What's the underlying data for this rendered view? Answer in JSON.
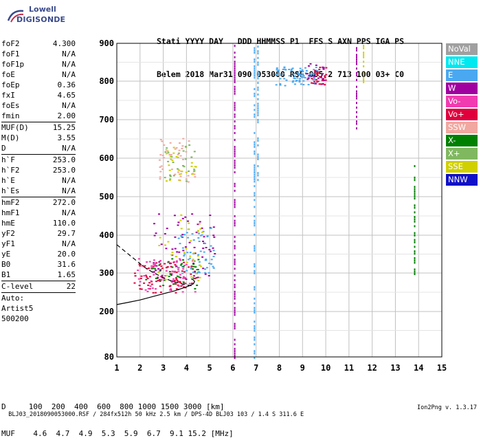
{
  "logo": {
    "line1": "Lowell",
    "line2": "DIGISONDE"
  },
  "header": {
    "line1": "Stati YYYY DAY   DDD HHMMSS P1  FFS S AXN PPS IGA PS",
    "line2": "Belem 2018 Mar31 090 053000 RSF 005 2 713 100 03+ C0"
  },
  "params_group1": [
    {
      "k": "foF2",
      "v": "4.300"
    },
    {
      "k": "foF1",
      "v": "N/A"
    },
    {
      "k": "foF1p",
      "v": "N/A"
    },
    {
      "k": "foE",
      "v": "N/A"
    },
    {
      "k": "foEp",
      "v": "0.36"
    },
    {
      "k": "fxI",
      "v": "4.65"
    },
    {
      "k": "foEs",
      "v": "N/A"
    },
    {
      "k": "fmin",
      "v": "2.00"
    }
  ],
  "params_group2": [
    {
      "k": "MUF(D)",
      "v": "15.25"
    },
    {
      "k": "M(D)",
      "v": "3.55"
    },
    {
      "k": "D",
      "v": "N/A"
    }
  ],
  "params_group3": [
    {
      "k": "h`F",
      "v": "253.0"
    },
    {
      "k": "h`F2",
      "v": "253.0"
    },
    {
      "k": "h`E",
      "v": "N/A"
    },
    {
      "k": "h`Es",
      "v": "N/A"
    }
  ],
  "params_group4": [
    {
      "k": "hmF2",
      "v": "272.0"
    },
    {
      "k": "hmF1",
      "v": "N/A"
    },
    {
      "k": "hmE",
      "v": "110.0"
    },
    {
      "k": "yF2",
      "v": "29.7"
    },
    {
      "k": "yF1",
      "v": "N/A"
    },
    {
      "k": "yE",
      "v": "20.0"
    },
    {
      "k": "B0",
      "v": "31.6"
    },
    {
      "k": "B1",
      "v": "1.65"
    }
  ],
  "params_group5": [
    {
      "k": "C-level",
      "v": "22"
    }
  ],
  "autoscale": {
    "line1": "Auto:",
    "line2": "Artist5",
    "line3": "500200"
  },
  "legend": [
    {
      "label": "NoVal",
      "color": "#a0a0a0"
    },
    {
      "label": "NNE",
      "color": "#00e8f0"
    },
    {
      "label": "E",
      "color": "#4aa8f0"
    },
    {
      "label": "W",
      "color": "#a000a0"
    },
    {
      "label": "Vo-",
      "color": "#f03cb0"
    },
    {
      "label": "Vo+",
      "color": "#e0003c"
    },
    {
      "label": "SSW",
      "color": "#f0a8a0"
    },
    {
      "label": "X-",
      "color": "#008000"
    },
    {
      "label": "X+",
      "color": "#80b860"
    },
    {
      "label": "SSE",
      "color": "#d0d000"
    },
    {
      "label": "NNW",
      "color": "#1010c8"
    }
  ],
  "mufs": {
    "line1": "D     100  200  400  600  800 1000 1500 3000 [km]",
    "line2": "MUF    4.6  4.7  4.9  5.3  5.9  6.7  9.1 15.2 [MHz]"
  },
  "footer": {
    "left": "BLJ03_2018090053000.RSF / 284fx512h 50 kHz 2.5 km / DPS-4D BLJ03 103 / 1.4 S 311.6 E",
    "right": "Ion2Png v. 1.3.17"
  },
  "chart_data": {
    "type": "scatter",
    "title": "",
    "xlabel": "",
    "ylabel": "",
    "xlim": [
      1,
      15
    ],
    "ylim": [
      80,
      900
    ],
    "xticks": [
      1,
      2,
      3,
      4,
      5,
      6,
      7,
      8,
      9,
      10,
      11,
      12,
      13,
      14,
      15
    ],
    "yticks": [
      80,
      200,
      300,
      400,
      500,
      600,
      700,
      800,
      900
    ],
    "grid": true,
    "y_scale": "sqrt-like (virtual height, compressed low end)",
    "traces": [
      {
        "name": "O-trace virtual height",
        "style": "dashed",
        "x": [
          1.0,
          1.4,
          1.8,
          2.2,
          2.6,
          3.0,
          3.4,
          3.8,
          4.1,
          4.3
        ],
        "y": [
          375,
          355,
          335,
          315,
          300,
          288,
          278,
          272,
          268,
          266
        ]
      },
      {
        "name": "True height profile",
        "style": "solid",
        "x": [
          1.0,
          1.5,
          2.0,
          2.5,
          3.0,
          3.5,
          3.8,
          4.1,
          4.3,
          4.35,
          4.3,
          4.2
        ],
        "y": [
          218,
          224,
          230,
          238,
          246,
          254,
          260,
          266,
          272,
          278,
          282,
          285
        ]
      }
    ],
    "clusters": [
      {
        "legend": "Vo+",
        "x_range": [
          1.7,
          4.4
        ],
        "y_range": [
          250,
          330
        ],
        "count": 90
      },
      {
        "legend": "Vo-",
        "x_range": [
          1.8,
          4.4
        ],
        "y_range": [
          250,
          340
        ],
        "count": 60
      },
      {
        "legend": "W",
        "x_range": [
          2.5,
          5.2
        ],
        "y_range": [
          280,
          460
        ],
        "count": 70
      },
      {
        "legend": "E",
        "x_range": [
          3.5,
          5.2
        ],
        "y_range": [
          300,
          420
        ],
        "count": 60
      },
      {
        "legend": "X-",
        "x_range": [
          2.2,
          4.5
        ],
        "y_range": [
          260,
          340
        ],
        "count": 35
      },
      {
        "legend": "SSE",
        "x_range": [
          2.6,
          4.7
        ],
        "y_range": [
          280,
          460
        ],
        "count": 35
      },
      {
        "legend": "SSW",
        "x_range": [
          2.8,
          4.5
        ],
        "y_range": [
          540,
          660
        ],
        "count": 45
      },
      {
        "legend": "SSE",
        "x_range": [
          3.0,
          4.4
        ],
        "y_range": [
          540,
          640
        ],
        "count": 25
      },
      {
        "legend": "X+",
        "x_range": [
          3.0,
          4.4
        ],
        "y_range": [
          540,
          640
        ],
        "count": 25
      },
      {
        "legend": "E",
        "x_range": [
          7.8,
          9.6
        ],
        "y_range": [
          790,
          840
        ],
        "count": 80
      },
      {
        "legend": "Vo+",
        "x_range": [
          9.3,
          10.0
        ],
        "y_range": [
          790,
          840
        ],
        "count": 30
      },
      {
        "legend": "W",
        "x_range": [
          9.1,
          9.9
        ],
        "y_range": [
          790,
          850
        ],
        "count": 20
      }
    ],
    "vertical_bands": [
      {
        "legend": "W",
        "x": 6.05,
        "y_range": [
          80,
          900
        ]
      },
      {
        "legend": "E",
        "x": 7.05,
        "y_range": [
          540,
          900
        ]
      },
      {
        "legend": "E",
        "x": 6.9,
        "y_range": [
          80,
          900
        ]
      },
      {
        "legend": "W",
        "x": 11.3,
        "y_range": [
          680,
          900
        ]
      },
      {
        "legend": "SSE",
        "x": 11.6,
        "y_range": [
          800,
          900
        ]
      },
      {
        "legend": "X-",
        "x": 13.8,
        "y_range": [
          300,
          600
        ]
      }
    ]
  }
}
